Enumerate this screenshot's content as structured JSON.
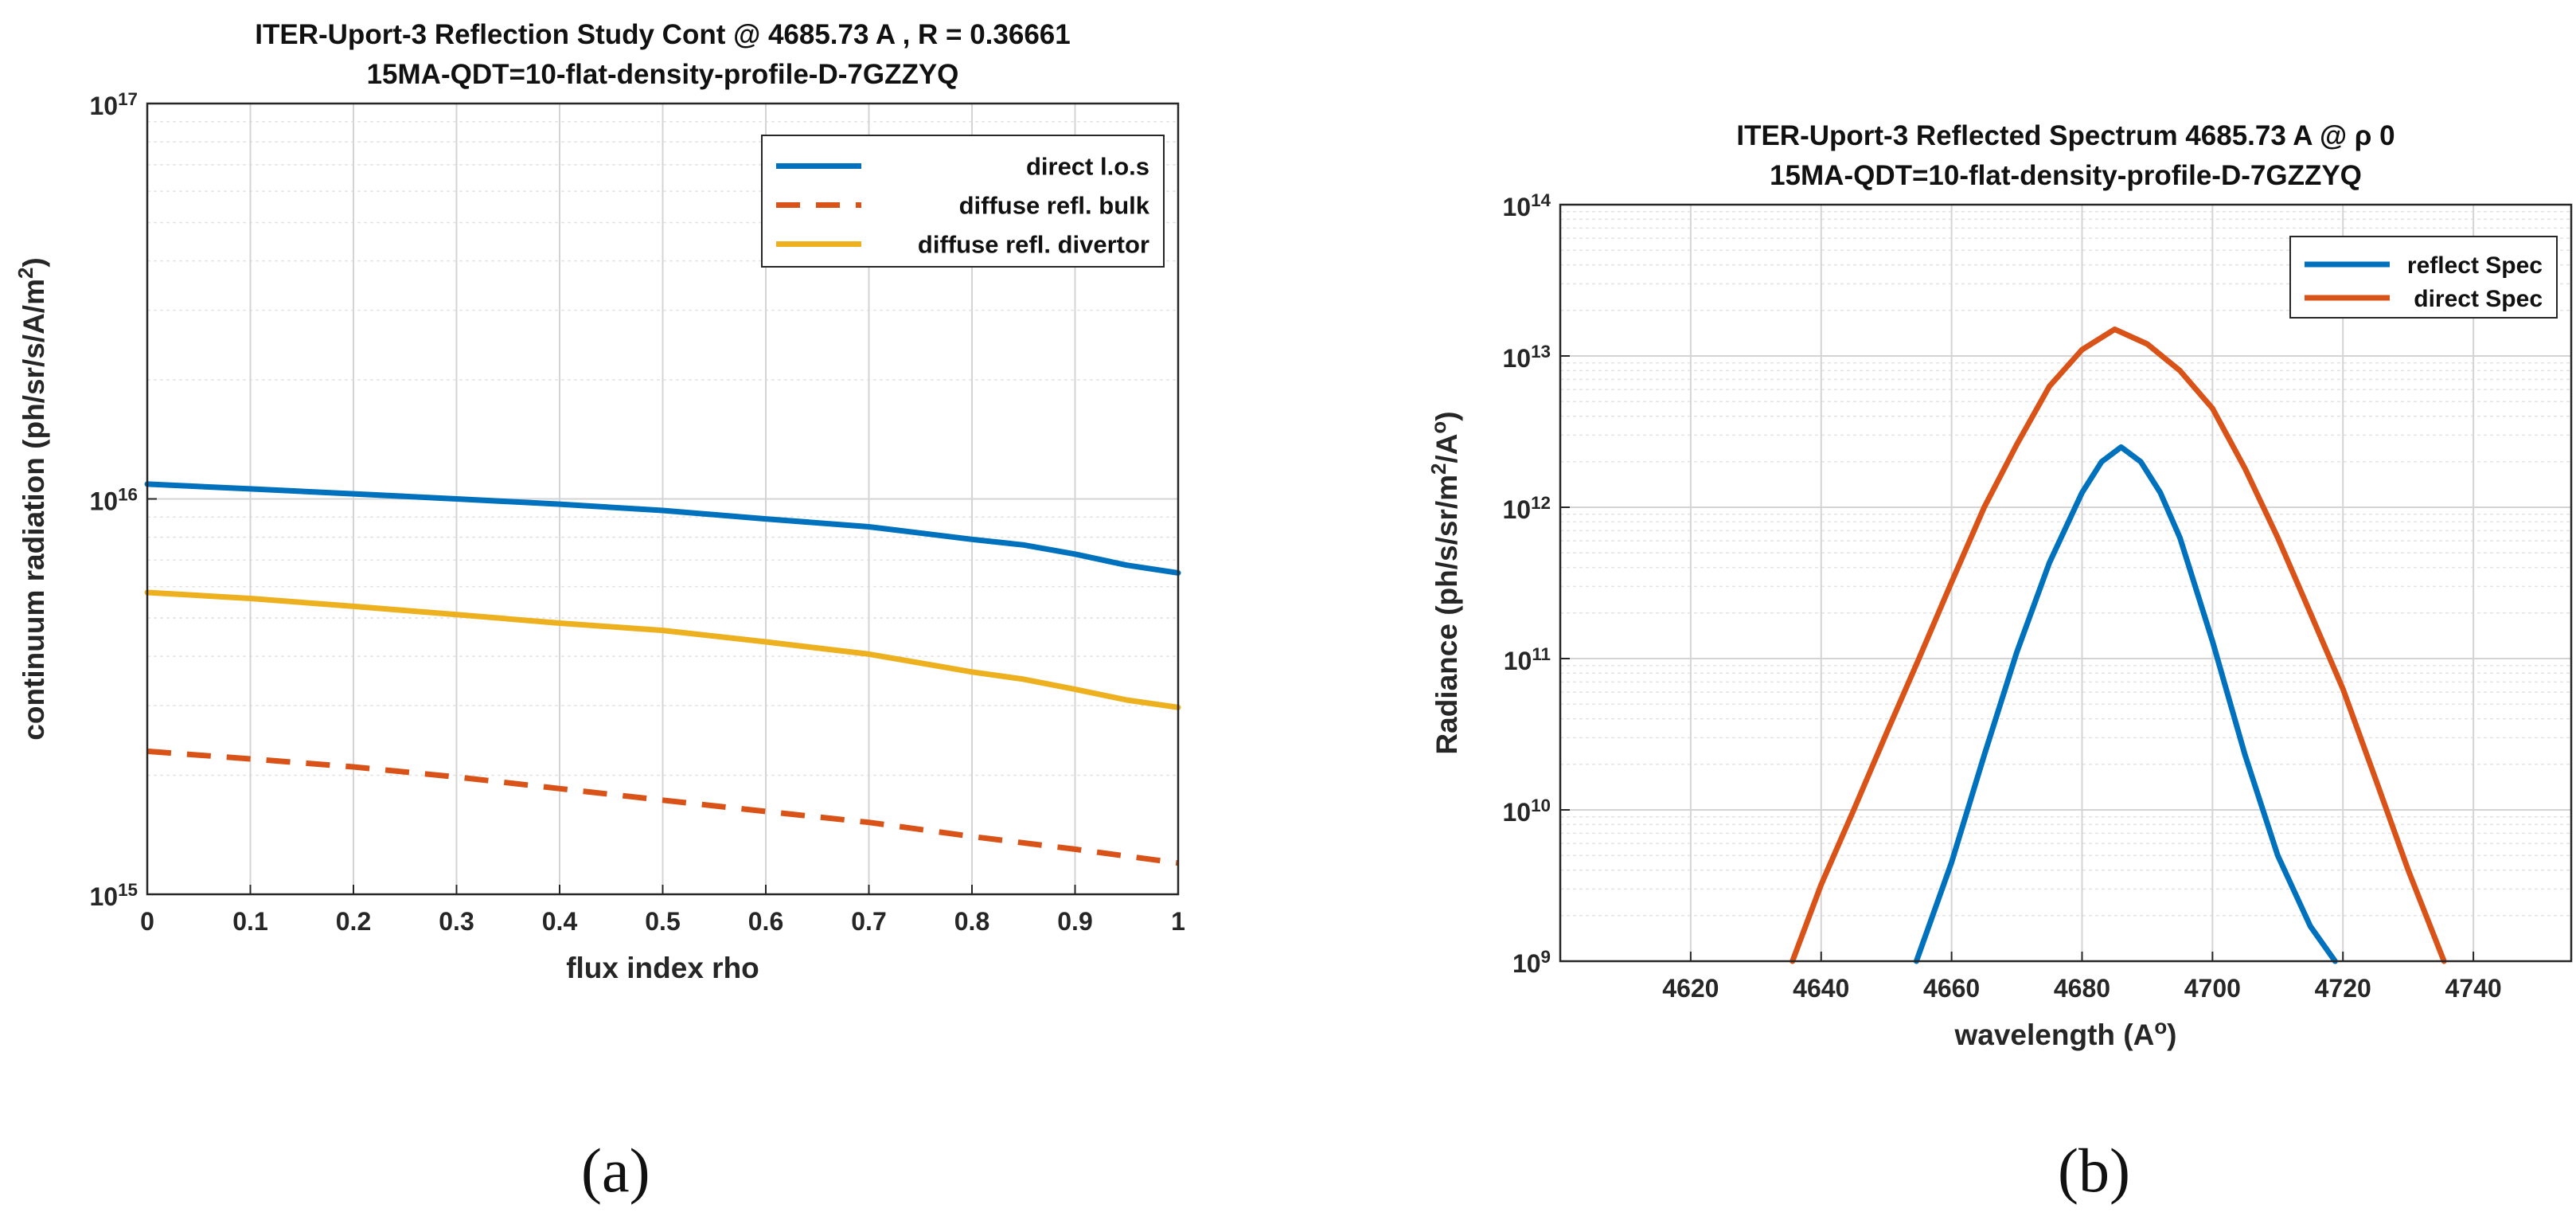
{
  "chart_data": [
    {
      "id": "a",
      "type": "line",
      "yscale": "log",
      "title": "ITER-Uport-3 Reflection Study Cont @ 4685.73 A , R = 0.36661",
      "subtitle": "15MA-QDT=10-flat-density-profile-D-7GZZYQ",
      "xlabel": "flux index rho",
      "ylabel": "continuum radiation (ph/sr/s/A/m^2)",
      "xlim": [
        0,
        1
      ],
      "ylim": [
        1000000000000000.0,
        1e+17
      ],
      "xticks": [
        "0",
        "0.1",
        "0.2",
        "0.3",
        "0.4",
        "0.5",
        "0.6",
        "0.7",
        "0.8",
        "0.9",
        "1"
      ],
      "yticks": [
        {
          "base": "10",
          "exp": "15"
        },
        {
          "base": "10",
          "exp": "16"
        },
        {
          "base": "10",
          "exp": "17"
        }
      ],
      "grid": true,
      "legend_position": "top-right",
      "series": [
        {
          "name": "direct l.o.s",
          "color": "#0072BD",
          "dash": "solid",
          "x": [
            0,
            0.1,
            0.2,
            0.3,
            0.4,
            0.5,
            0.6,
            0.7,
            0.8,
            0.85,
            0.9,
            0.95,
            1.0
          ],
          "y": [
            1.09e+16,
            1.06e+16,
            1.03e+16,
            1e+16,
            9700000000000000.0,
            9350000000000000.0,
            8900000000000000.0,
            8500000000000000.0,
            7900000000000000.0,
            7650000000000000.0,
            7250000000000000.0,
            6800000000000000.0,
            6500000000000000.0
          ]
        },
        {
          "name": "diffuse refl. bulk",
          "color": "#D95319",
          "dash": "dashed",
          "x": [
            0,
            0.1,
            0.2,
            0.3,
            0.4,
            0.5,
            0.6,
            0.7,
            0.8,
            0.9,
            1.0
          ],
          "y": [
            2300000000000000.0,
            2200000000000000.0,
            2100000000000000.0,
            1980000000000000.0,
            1850000000000000.0,
            1730000000000000.0,
            1620000000000000.0,
            1520000000000000.0,
            1400000000000000.0,
            1300000000000000.0,
            1200000000000000.0
          ]
        },
        {
          "name": "diffuse refl. divertor",
          "color": "#EDB120",
          "dash": "solid",
          "x": [
            0,
            0.1,
            0.2,
            0.3,
            0.4,
            0.5,
            0.6,
            0.7,
            0.8,
            0.85,
            0.9,
            0.95,
            1.0
          ],
          "y": [
            5800000000000000.0,
            5600000000000000.0,
            5350000000000000.0,
            5100000000000000.0,
            4850000000000000.0,
            4650000000000000.0,
            4350000000000000.0,
            4050000000000000.0,
            3650000000000000.0,
            3500000000000000.0,
            3300000000000000.0,
            3100000000000000.0,
            2970000000000000.0
          ]
        }
      ]
    },
    {
      "id": "b",
      "type": "line",
      "yscale": "log",
      "title": "ITER-Uport-3 Reflected Spectrum 4685.73 A @ ρ 0",
      "subtitle": "15MA-QDT=10-flat-density-profile-D-7GZZYQ",
      "xlabel": "wavelength (A^o)",
      "ylabel": "Radiance (ph/s/sr/m^2/A^o)",
      "xlim": [
        4600,
        4755
      ],
      "ylim": [
        1000000000.0,
        100000000000000.0
      ],
      "xticks": [
        "4620",
        "4640",
        "4660",
        "4680",
        "4700",
        "4720",
        "4740"
      ],
      "yticks": [
        {
          "base": "10",
          "exp": "9"
        },
        {
          "base": "10",
          "exp": "10"
        },
        {
          "base": "10",
          "exp": "11"
        },
        {
          "base": "10",
          "exp": "12"
        },
        {
          "base": "10",
          "exp": "13"
        },
        {
          "base": "10",
          "exp": "14"
        }
      ],
      "grid": true,
      "legend_position": "top-right",
      "series": [
        {
          "name": "reflect Spec",
          "color": "#0072BD",
          "dash": "solid",
          "x": [
            4654.6,
            4660,
            4665,
            4670,
            4675,
            4680,
            4683,
            4686,
            4689,
            4692,
            4695,
            4700,
            4705,
            4710,
            4715,
            4718.8
          ],
          "y": [
            1000000000.0,
            4500000000.0,
            23000000000.0,
            110000000000.0,
            430000000000.0,
            1250000000000.0,
            2000000000000.0,
            2500000000000.0,
            2000000000000.0,
            1250000000000.0,
            630000000000.0,
            130000000000.0,
            23000000000.0,
            5000000000.0,
            1700000000.0,
            1000000000.0
          ]
        },
        {
          "name": "direct Spec",
          "color": "#D95319",
          "dash": "solid",
          "x": [
            4635.6,
            4640,
            4645,
            4650,
            4655,
            4660,
            4665,
            4670,
            4675,
            4680,
            4685,
            4690,
            4695,
            4700,
            4705,
            4710,
            4715,
            4720,
            4725,
            4730,
            4735.5
          ],
          "y": [
            1000000000.0,
            3200000000.0,
            10000000000.0,
            32000000000.0,
            100000000000.0,
            320000000000.0,
            1000000000000.0,
            2600000000000.0,
            6300000000000.0,
            11000000000000.0,
            15000000000000.0,
            12000000000000.0,
            8000000000000.0,
            4500000000000.0,
            1800000000000.0,
            630000000000.0,
            200000000000.0,
            63000000000.0,
            16000000000.0,
            4000000000.0,
            1000000000.0
          ]
        }
      ]
    }
  ],
  "captions": {
    "a": "(a)",
    "b": "(b)"
  }
}
